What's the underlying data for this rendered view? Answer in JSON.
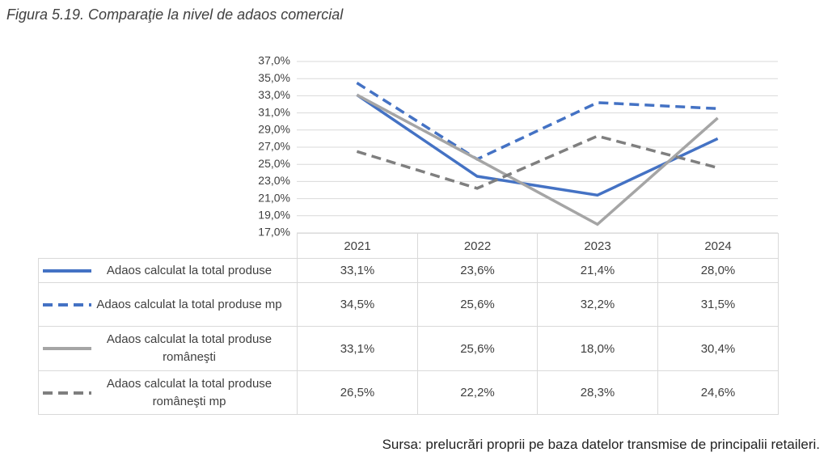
{
  "title": "Figura 5.19. Comparaţie la nivel de adaos comercial",
  "source": "Sursa: prelucrări proprii pe baza datelor transmise de principalii retaileri.",
  "chart_data": {
    "type": "line",
    "categories": [
      "2021",
      "2022",
      "2023",
      "2024"
    ],
    "series": [
      {
        "name": "Adaos calculat la total produse",
        "color": "#4472c4",
        "dashed": false,
        "values": [
          33.1,
          23.6,
          21.4,
          28.0
        ],
        "value_labels": [
          "33,1%",
          "23,6%",
          "21,4%",
          "28,0%"
        ]
      },
      {
        "name": "Adaos calculat la total produse mp",
        "color": "#4472c4",
        "dashed": true,
        "values": [
          34.5,
          25.6,
          32.2,
          31.5
        ],
        "value_labels": [
          "34,5%",
          "25,6%",
          "32,2%",
          "31,5%"
        ]
      },
      {
        "name": "Adaos calculat la total produse româneşti",
        "color": "#a5a5a5",
        "dashed": false,
        "values": [
          33.1,
          25.6,
          18.0,
          30.4
        ],
        "value_labels": [
          "33,1%",
          "25,6%",
          "18,0%",
          "30,4%"
        ]
      },
      {
        "name": "Adaos calculat la total produse româneşti mp",
        "color": "#7f7f7f",
        "dashed": true,
        "values": [
          26.5,
          22.2,
          28.3,
          24.6
        ],
        "value_labels": [
          "26,5%",
          "22,2%",
          "28,3%",
          "24,6%"
        ]
      }
    ],
    "ylim": [
      17,
      37
    ],
    "yticks": [
      {
        "value": 17,
        "label": "17,0%"
      },
      {
        "value": 19,
        "label": "19,0%"
      },
      {
        "value": 21,
        "label": "21,0%"
      },
      {
        "value": 23,
        "label": "23,0%"
      },
      {
        "value": 25,
        "label": "25,0%"
      },
      {
        "value": 27,
        "label": "27,0%"
      },
      {
        "value": 29,
        "label": "29,0%"
      },
      {
        "value": 31,
        "label": "31,0%"
      },
      {
        "value": 33,
        "label": "33,0%"
      },
      {
        "value": 35,
        "label": "35,0%"
      },
      {
        "value": 37,
        "label": "37,0%"
      }
    ],
    "grid": true
  }
}
